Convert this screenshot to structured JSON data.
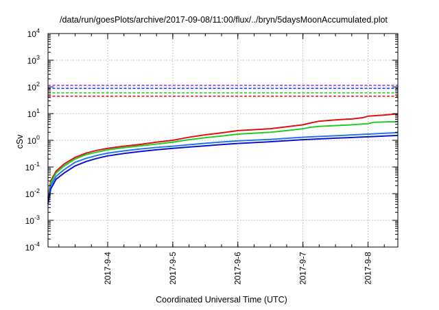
{
  "chart_data": {
    "type": "line",
    "title": "/data/run/goesPlots/archive/2017-09-08/11:00/flux/../bryn/5daysMoonAccumulated.plot",
    "xlabel": "Coordinated Universal Time (UTC)",
    "ylabel": "cSv",
    "x_scale": "time",
    "y_scale": "log",
    "xlim": [
      "2017-09-03T02:00",
      "2017-09-08T11:00"
    ],
    "ylim": [
      0.0001,
      10000
    ],
    "grid": true,
    "x_ticks": [
      {
        "value": "2017-09-04T00:00",
        "label": "2017-9-4"
      },
      {
        "value": "2017-09-05T00:00",
        "label": "2017-9-5"
      },
      {
        "value": "2017-09-06T00:00",
        "label": "2017-9-6"
      },
      {
        "value": "2017-09-07T00:00",
        "label": "2017-9-7"
      },
      {
        "value": "2017-09-08T00:00",
        "label": "2017-9-8"
      }
    ],
    "y_ticks": [
      {
        "value": 0.0001,
        "base": "10",
        "exp": "-4"
      },
      {
        "value": 0.001,
        "base": "10",
        "exp": "-3"
      },
      {
        "value": 0.01,
        "base": "10",
        "exp": "-2"
      },
      {
        "value": 0.1,
        "base": "10",
        "exp": "-1"
      },
      {
        "value": 1,
        "base": "10",
        "exp": "0"
      },
      {
        "value": 10,
        "base": "10",
        "exp": "1"
      },
      {
        "value": 100,
        "base": "10",
        "exp": "2"
      },
      {
        "value": 1000,
        "base": "10",
        "exp": "3"
      },
      {
        "value": 10000,
        "base": "10",
        "exp": "4"
      }
    ],
    "reference_lines": [
      {
        "y": 115,
        "color": "#a020f0",
        "style": "dashed"
      },
      {
        "y": 88,
        "color": "#1e50dc",
        "style": "dashed"
      },
      {
        "y": 60,
        "color": "#22cc22",
        "style": "dashed"
      },
      {
        "y": 45,
        "color": "#e01010",
        "style": "dashed"
      }
    ],
    "series": [
      {
        "color": "#e01010",
        "points": [
          [
            "2017-09-03T02:00",
            0.007
          ],
          [
            "2017-09-03T03:00",
            0.03
          ],
          [
            "2017-09-03T05:00",
            0.07
          ],
          [
            "2017-09-03T08:00",
            0.13
          ],
          [
            "2017-09-03T12:00",
            0.23
          ],
          [
            "2017-09-03T16:00",
            0.33
          ],
          [
            "2017-09-03T20:00",
            0.42
          ],
          [
            "2017-09-04T00:00",
            0.5
          ],
          [
            "2017-09-04T06:00",
            0.6
          ],
          [
            "2017-09-04T12:00",
            0.7
          ],
          [
            "2017-09-04T18:00",
            0.85
          ],
          [
            "2017-09-05T00:00",
            1.0
          ],
          [
            "2017-09-05T06:00",
            1.3
          ],
          [
            "2017-09-05T12:00",
            1.6
          ],
          [
            "2017-09-05T18:00",
            1.9
          ],
          [
            "2017-09-06T00:00",
            2.3
          ],
          [
            "2017-09-06T06:00",
            2.5
          ],
          [
            "2017-09-06T12:00",
            2.7
          ],
          [
            "2017-09-06T18:00",
            3.2
          ],
          [
            "2017-09-07T00:00",
            3.8
          ],
          [
            "2017-09-07T03:00",
            4.5
          ],
          [
            "2017-09-07T06:00",
            5.2
          ],
          [
            "2017-09-07T12:00",
            5.8
          ],
          [
            "2017-09-07T18:00",
            6.3
          ],
          [
            "2017-09-07T22:00",
            7.0
          ],
          [
            "2017-09-08T00:00",
            8.0
          ],
          [
            "2017-09-08T06:00",
            8.8
          ],
          [
            "2017-09-08T11:00",
            9.8
          ]
        ]
      },
      {
        "color": "#22cc22",
        "points": [
          [
            "2017-09-03T02:00",
            0.006
          ],
          [
            "2017-09-03T03:00",
            0.025
          ],
          [
            "2017-09-03T05:00",
            0.06
          ],
          [
            "2017-09-03T08:00",
            0.11
          ],
          [
            "2017-09-03T12:00",
            0.2
          ],
          [
            "2017-09-03T16:00",
            0.29
          ],
          [
            "2017-09-03T20:00",
            0.36
          ],
          [
            "2017-09-04T00:00",
            0.44
          ],
          [
            "2017-09-04T06:00",
            0.53
          ],
          [
            "2017-09-04T12:00",
            0.62
          ],
          [
            "2017-09-04T18:00",
            0.72
          ],
          [
            "2017-09-05T00:00",
            0.85
          ],
          [
            "2017-09-05T06:00",
            1.05
          ],
          [
            "2017-09-05T12:00",
            1.25
          ],
          [
            "2017-09-05T18:00",
            1.45
          ],
          [
            "2017-09-06T00:00",
            1.7
          ],
          [
            "2017-09-06T06:00",
            1.85
          ],
          [
            "2017-09-06T12:00",
            2.0
          ],
          [
            "2017-09-06T18:00",
            2.3
          ],
          [
            "2017-09-07T00:00",
            2.7
          ],
          [
            "2017-09-07T03:00",
            3.1
          ],
          [
            "2017-09-07T06:00",
            3.3
          ],
          [
            "2017-09-07T12:00",
            3.55
          ],
          [
            "2017-09-07T18:00",
            3.8
          ],
          [
            "2017-09-08T00:00",
            4.2
          ],
          [
            "2017-09-08T02:00",
            4.7
          ],
          [
            "2017-09-08T06:00",
            4.85
          ],
          [
            "2017-09-08T11:00",
            5.0
          ]
        ]
      },
      {
        "color": "#1e78e6",
        "points": [
          [
            "2017-09-03T02:00",
            0.005
          ],
          [
            "2017-09-03T03:00",
            0.02
          ],
          [
            "2017-09-03T05:00",
            0.045
          ],
          [
            "2017-09-03T08:00",
            0.08
          ],
          [
            "2017-09-03T12:00",
            0.15
          ],
          [
            "2017-09-03T16:00",
            0.21
          ],
          [
            "2017-09-03T20:00",
            0.27
          ],
          [
            "2017-09-04T00:00",
            0.33
          ],
          [
            "2017-09-04T06:00",
            0.4
          ],
          [
            "2017-09-04T12:00",
            0.47
          ],
          [
            "2017-09-04T18:00",
            0.54
          ],
          [
            "2017-09-05T00:00",
            0.6
          ],
          [
            "2017-09-05T06:00",
            0.68
          ],
          [
            "2017-09-05T12:00",
            0.77
          ],
          [
            "2017-09-05T18:00",
            0.86
          ],
          [
            "2017-09-06T00:00",
            0.95
          ],
          [
            "2017-09-06T12:00",
            1.08
          ],
          [
            "2017-09-07T00:00",
            1.3
          ],
          [
            "2017-09-07T12:00",
            1.48
          ],
          [
            "2017-09-08T00:00",
            1.7
          ],
          [
            "2017-09-08T11:00",
            1.95
          ]
        ]
      },
      {
        "color": "#1010d0",
        "points": [
          [
            "2017-09-03T02:00",
            0.004
          ],
          [
            "2017-09-03T03:00",
            0.015
          ],
          [
            "2017-09-03T05:00",
            0.035
          ],
          [
            "2017-09-03T08:00",
            0.06
          ],
          [
            "2017-09-03T12:00",
            0.11
          ],
          [
            "2017-09-03T16:00",
            0.16
          ],
          [
            "2017-09-03T20:00",
            0.21
          ],
          [
            "2017-09-04T00:00",
            0.26
          ],
          [
            "2017-09-04T06:00",
            0.32
          ],
          [
            "2017-09-04T12:00",
            0.38
          ],
          [
            "2017-09-04T18:00",
            0.44
          ],
          [
            "2017-09-05T00:00",
            0.5
          ],
          [
            "2017-09-05T06:00",
            0.56
          ],
          [
            "2017-09-05T12:00",
            0.62
          ],
          [
            "2017-09-05T18:00",
            0.69
          ],
          [
            "2017-09-06T00:00",
            0.76
          ],
          [
            "2017-09-06T12:00",
            0.88
          ],
          [
            "2017-09-07T00:00",
            1.05
          ],
          [
            "2017-09-07T12:00",
            1.2
          ],
          [
            "2017-09-08T00:00",
            1.35
          ],
          [
            "2017-09-08T11:00",
            1.52
          ]
        ]
      }
    ]
  }
}
